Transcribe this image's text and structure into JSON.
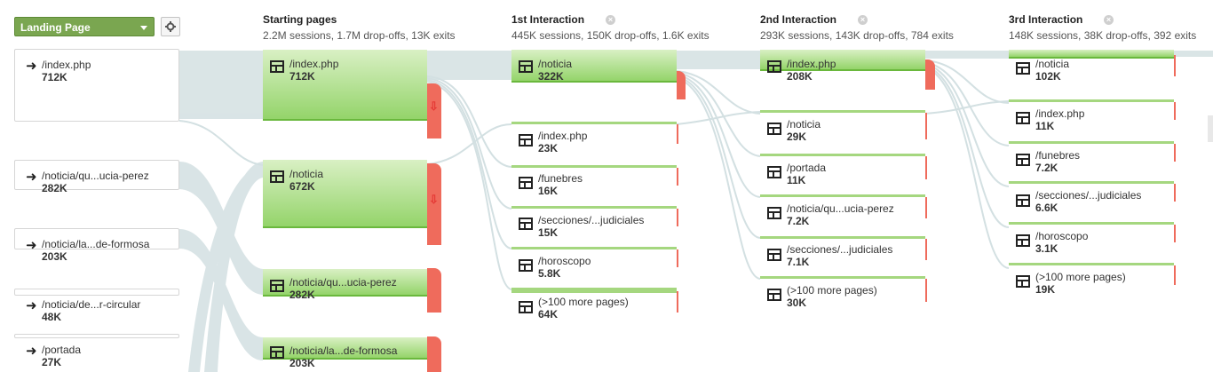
{
  "controls": {
    "dimension_label": "Landing Page"
  },
  "columns": [
    {
      "title": "Starting pages",
      "summary": "2.2M sessions, 1.7M drop-offs, 13K exits",
      "closable": false
    },
    {
      "title": "1st Interaction",
      "summary": "445K sessions, 150K drop-offs, 1.6K exits",
      "closable": true
    },
    {
      "title": "2nd Interaction",
      "summary": "293K sessions, 143K drop-offs, 784 exits",
      "closable": true
    },
    {
      "title": "3rd Interaction",
      "summary": "148K sessions, 38K drop-offs, 392 exits",
      "closable": true
    }
  ],
  "landing_pages": [
    {
      "name": "/index.php",
      "value": "712K"
    },
    {
      "name": "/noticia/qu...ucia-perez",
      "value": "282K"
    },
    {
      "name": "/noticia/la...de-formosa",
      "value": "203K"
    },
    {
      "name": "/noticia/de...r-circular",
      "value": "48K"
    },
    {
      "name": "/portada",
      "value": "27K"
    }
  ],
  "starting_pages": [
    {
      "name": "/index.php",
      "value": "712K"
    },
    {
      "name": "/noticia",
      "value": "672K"
    },
    {
      "name": "/noticia/qu...ucia-perez",
      "value": "282K"
    },
    {
      "name": "/noticia/la...de-formosa",
      "value": "203K"
    }
  ],
  "interaction_1": [
    {
      "name": "/noticia",
      "value": "322K"
    },
    {
      "name": "/index.php",
      "value": "23K"
    },
    {
      "name": "/funebres",
      "value": "16K"
    },
    {
      "name": "/secciones/...judiciales",
      "value": "15K"
    },
    {
      "name": "/horoscopo",
      "value": "5.8K"
    },
    {
      "name": "(>100 more pages)",
      "value": "64K"
    }
  ],
  "interaction_2": [
    {
      "name": "/index.php",
      "value": "208K"
    },
    {
      "name": "/noticia",
      "value": "29K"
    },
    {
      "name": "/portada",
      "value": "11K"
    },
    {
      "name": "/noticia/qu...ucia-perez",
      "value": "7.2K"
    },
    {
      "name": "/secciones/...judiciales",
      "value": "7.1K"
    },
    {
      "name": "(>100 more pages)",
      "value": "30K"
    }
  ],
  "interaction_3": [
    {
      "name": "/noticia",
      "value": "102K"
    },
    {
      "name": "/index.php",
      "value": "11K"
    },
    {
      "name": "/funebres",
      "value": "7.2K"
    },
    {
      "name": "/secciones/...judiciales",
      "value": "6.6K"
    },
    {
      "name": "/horoscopo",
      "value": "3.1K"
    },
    {
      "name": "(>100 more pages)",
      "value": "19K"
    }
  ],
  "colors": {
    "node_green": "#94d46a",
    "drop_off_red": "#ef6b5c",
    "flow_grey": "#d3e0e2",
    "dropdown_green": "#7aa650"
  }
}
